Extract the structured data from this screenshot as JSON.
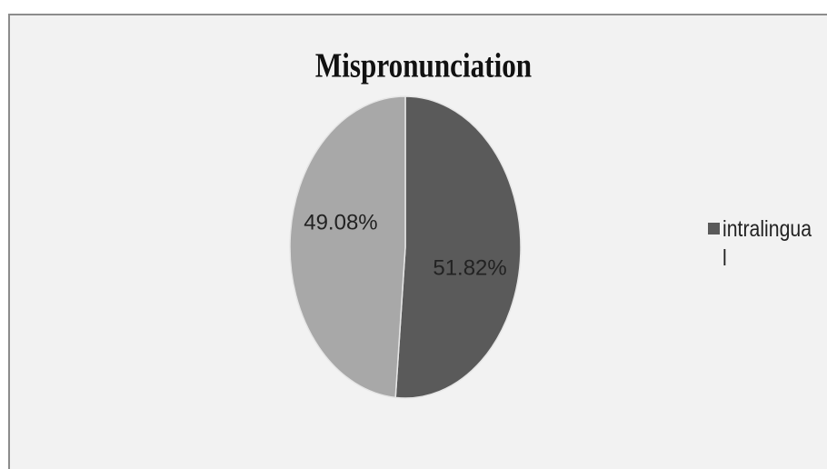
{
  "chart_data": {
    "type": "pie",
    "title": "Mispronunciation",
    "categories": [
      "intralingual",
      null
    ],
    "values": [
      51.82,
      49.08
    ],
    "value_labels": [
      "51.82%",
      "49.08%"
    ],
    "colors": [
      "#5a5a5a",
      "#a8a8a8"
    ],
    "legend": "right"
  }
}
